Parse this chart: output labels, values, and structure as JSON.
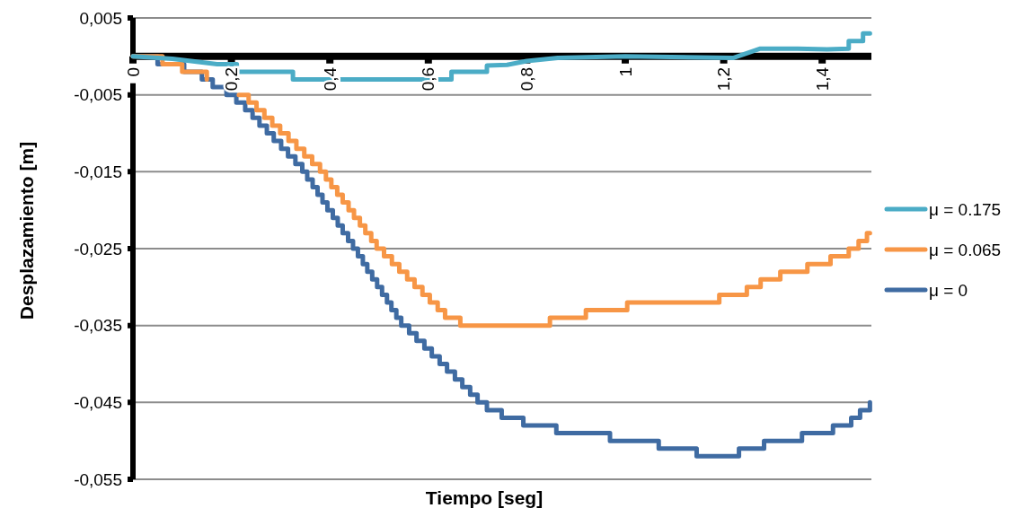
{
  "chart_data": {
    "type": "step",
    "xlabel": "Tiempo [seg]",
    "ylabel": "Desplazamiento [m]",
    "xlim": [
      0,
      1.5
    ],
    "xticks": [
      {
        "value": 0,
        "label": "0"
      },
      {
        "value": 0.2,
        "label": "0,2"
      },
      {
        "value": 0.4,
        "label": "0,4"
      },
      {
        "value": 0.6,
        "label": "0,6"
      },
      {
        "value": 0.8,
        "label": "0,8"
      },
      {
        "value": 1,
        "label": "1"
      },
      {
        "value": 1.2,
        "label": "1,2"
      },
      {
        "value": 1.4,
        "label": "1,4"
      }
    ],
    "ylim": [
      -0.055,
      0.005
    ],
    "yticks": [
      {
        "value": 0.005,
        "label": "0,005"
      },
      {
        "value": -0.005,
        "label": "-0,005"
      },
      {
        "value": -0.015,
        "label": "-0,015"
      },
      {
        "value": -0.025,
        "label": "-0,025"
      },
      {
        "value": -0.035,
        "label": "-0,035"
      },
      {
        "value": -0.045,
        "label": "-0,045"
      },
      {
        "value": -0.055,
        "label": "-0,055"
      }
    ],
    "grid": "y",
    "legend": "right",
    "marker": "none",
    "line_style": "solid",
    "series": [
      {
        "name": "μ = 0.175",
        "color": "#4bacc6",
        "type": "line",
        "x": [
          0,
          0.08,
          0.171,
          0.211,
          0.211,
          0.325,
          0.325,
          0.647,
          0.647,
          0.719,
          0.719,
          0.76,
          0.8,
          0.863,
          1.0,
          1.219,
          1.273,
          1.35,
          1.41,
          1.454,
          1.454,
          1.483,
          1.483,
          1.497
        ],
        "values": [
          0,
          -0.0003,
          -0.001,
          -0.001,
          -0.002,
          -0.002,
          -0.003,
          -0.003,
          -0.002,
          -0.002,
          -0.0012,
          -0.0011,
          -0.0006,
          -0.0002,
          0,
          -0.0002,
          0.001,
          0.001,
          0.0009,
          0.001,
          0.002,
          0.002,
          0.003,
          0.003
        ]
      },
      {
        "name": "μ = 0.065",
        "color": "#f79646",
        "x": [
          0,
          0.06,
          0.1,
          0.15,
          0.19,
          0.215,
          0.235,
          0.251,
          0.267,
          0.283,
          0.299,
          0.316,
          0.332,
          0.348,
          0.364,
          0.38,
          0.392,
          0.403,
          0.415,
          0.426,
          0.438,
          0.449,
          0.461,
          0.472,
          0.484,
          0.495,
          0.51,
          0.526,
          0.541,
          0.557,
          0.572,
          0.588,
          0.603,
          0.619,
          0.634,
          0.665,
          0.847,
          0.92,
          1.004,
          1.191,
          1.247,
          1.275,
          1.315,
          1.37,
          1.417,
          1.454,
          1.474,
          1.491,
          1.497
        ],
        "values": [
          0,
          -0.001,
          -0.002,
          -0.003,
          null,
          -0.005,
          -0.006,
          -0.007,
          -0.008,
          -0.009,
          -0.01,
          -0.011,
          -0.012,
          -0.013,
          -0.014,
          -0.015,
          -0.016,
          -0.017,
          -0.018,
          -0.019,
          -0.02,
          -0.021,
          -0.022,
          -0.023,
          -0.024,
          -0.025,
          -0.026,
          -0.027,
          -0.028,
          -0.029,
          -0.03,
          -0.031,
          -0.032,
          -0.033,
          -0.034,
          -0.035,
          -0.034,
          -0.033,
          -0.032,
          -0.031,
          -0.03,
          -0.029,
          -0.028,
          -0.027,
          -0.026,
          -0.025,
          -0.024,
          -0.023,
          -0.023
        ]
      },
      {
        "name": "μ = 0",
        "color": "#3f6ba2",
        "x": [
          0,
          0.05,
          0.104,
          0.14,
          0.162,
          0.19,
          0.21,
          0.228,
          0.243,
          0.257,
          0.272,
          0.286,
          0.301,
          0.315,
          0.33,
          0.344,
          0.354,
          0.365,
          0.375,
          0.385,
          0.395,
          0.406,
          0.416,
          0.426,
          0.437,
          0.447,
          0.457,
          0.467,
          0.476,
          0.486,
          0.496,
          0.506,
          0.516,
          0.525,
          0.535,
          0.545,
          0.561,
          0.576,
          0.592,
          0.607,
          0.623,
          0.638,
          0.654,
          0.669,
          0.685,
          0.7,
          0.719,
          0.749,
          0.793,
          0.86,
          0.969,
          1.068,
          1.145,
          1.231,
          1.282,
          1.359,
          1.422,
          1.459,
          1.477,
          1.497
        ],
        "values": [
          0,
          -0.001,
          -0.002,
          -0.003,
          -0.004,
          -0.005,
          -0.006,
          -0.007,
          -0.008,
          -0.009,
          -0.01,
          -0.011,
          -0.012,
          -0.013,
          -0.014,
          -0.015,
          -0.016,
          -0.017,
          -0.018,
          -0.019,
          -0.02,
          -0.021,
          -0.022,
          -0.023,
          -0.024,
          -0.025,
          -0.026,
          -0.027,
          -0.028,
          -0.029,
          -0.03,
          -0.031,
          -0.032,
          -0.033,
          -0.034,
          -0.035,
          -0.036,
          -0.037,
          -0.038,
          -0.039,
          -0.04,
          -0.041,
          -0.042,
          -0.043,
          -0.044,
          -0.045,
          -0.046,
          -0.047,
          -0.048,
          -0.049,
          -0.05,
          -0.051,
          -0.052,
          -0.051,
          -0.05,
          -0.049,
          -0.048,
          -0.047,
          -0.046,
          -0.045
        ]
      }
    ]
  }
}
